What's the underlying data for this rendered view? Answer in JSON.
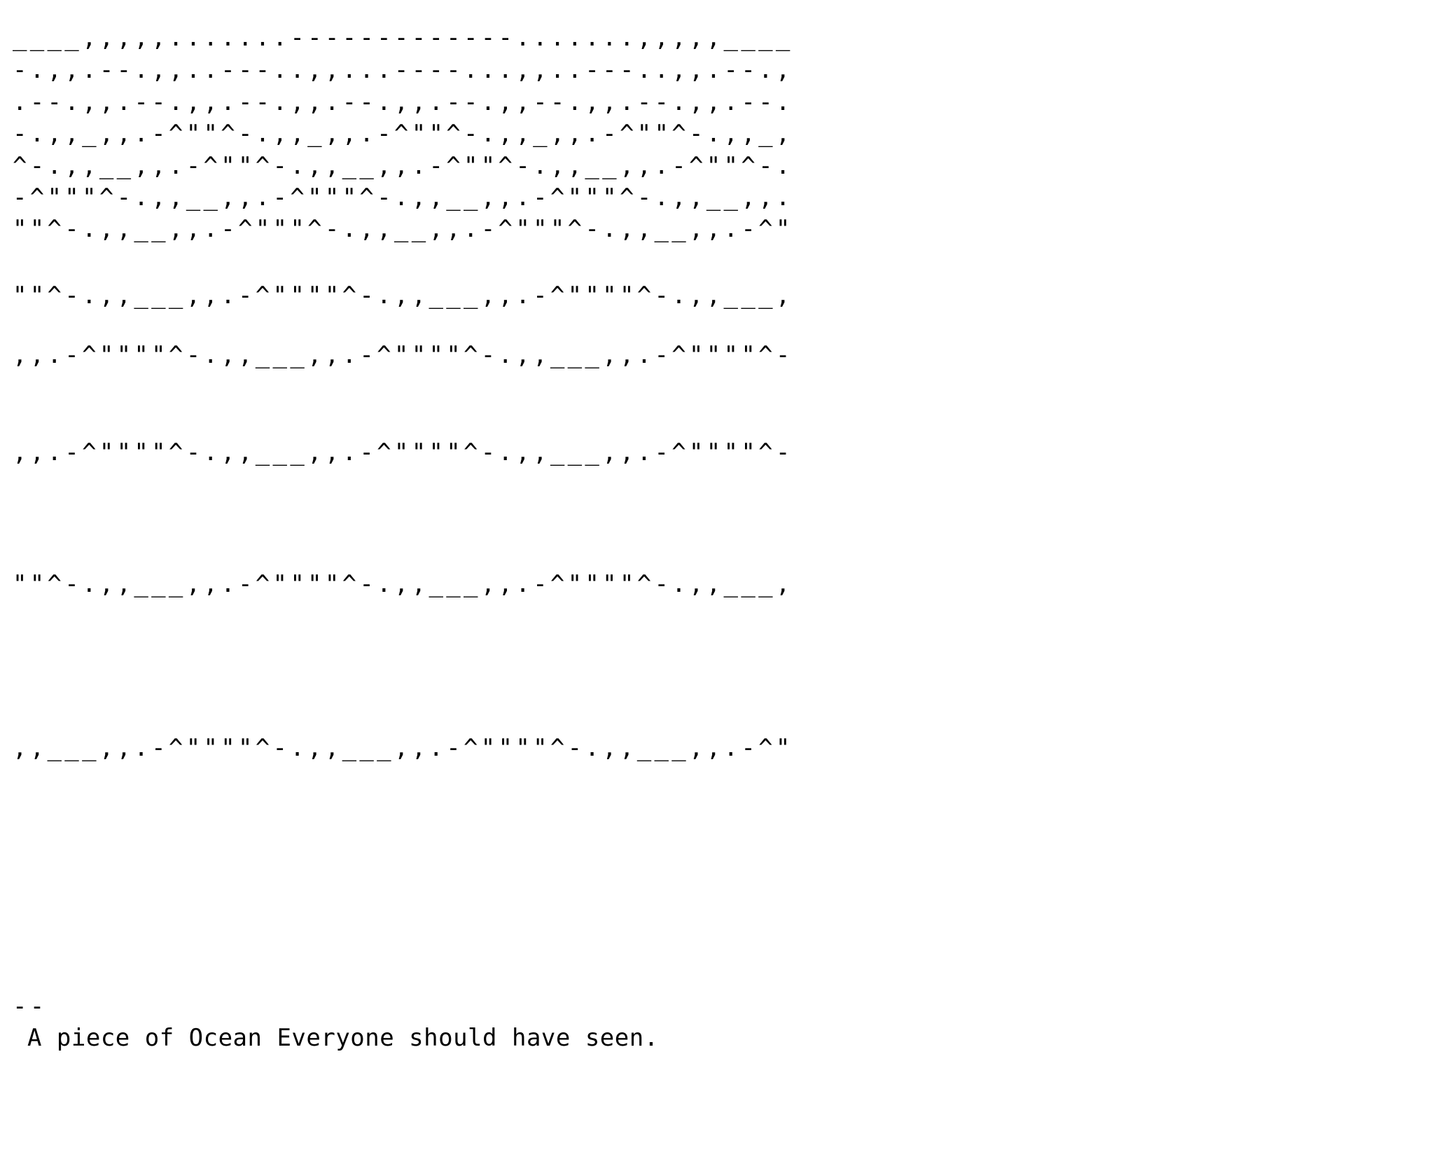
{
  "ascii_art": {
    "lines": [
      "____,,,,,.......-------------.......,,,,,____",
      "-.,,.--.,,..---..,,...----...,,..---..,,.--.,",
      ".--.,,.--.,,.--.,,.--.,,.--.,,--.,,.--.,,.--.",
      "-.,,_,,.-^\"\"^-.,,_,,.-^\"\"^-.,,_,,.-^\"\"^-.,,_,",
      "^-.,,__,,.-^\"\"^-.,,__,,.-^\"\"^-.,,__,,.-^\"\"^-.",
      "-^\"\"\"^-.,,__,,.-^\"\"\"^-.,,__,,.-^\"\"\"^-.,,__,,.",
      "\"\"^-.,,__,,.-^\"\"\"^-.,,__,,.-^\"\"\"^-.,,__,,.-^\"",
      "\"\"^-.,,___,,.-^\"\"\"\"^-.,,___,,.-^\"\"\"\"^-.,,___,",
      ",,.-^\"\"\"\"^-.,,___,,.-^\"\"\"\"^-.,,___,,.-^\"\"\"\"^-",
      ",,.-^\"\"\"\"^-.,,___,,.-^\"\"\"\"^-.,,___,,.-^\"\"\"\"^-",
      "\"\"^-.,,___,,.-^\"\"\"\"^-.,,___,,.-^\"\"\"\"^-.,,___,",
      ",,___,,.-^\"\"\"\"^-.,,___,,.-^\"\"\"\"^-.,,___,,.-^\""
    ]
  },
  "signature": {
    "dash": "--",
    "text": " A piece of Ocean Everyone should have seen."
  }
}
